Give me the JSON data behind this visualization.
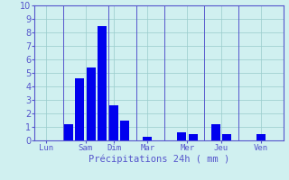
{
  "bars": [
    {
      "x": 1.0,
      "height": 0.0
    },
    {
      "x": 2.0,
      "height": 1.2
    },
    {
      "x": 2.5,
      "height": 4.6
    },
    {
      "x": 3.0,
      "height": 5.4
    },
    {
      "x": 3.5,
      "height": 8.5
    },
    {
      "x": 4.0,
      "height": 2.6
    },
    {
      "x": 4.5,
      "height": 1.5
    },
    {
      "x": 5.5,
      "height": 0.3
    },
    {
      "x": 7.0,
      "height": 0.6
    },
    {
      "x": 7.5,
      "height": 0.5
    },
    {
      "x": 8.5,
      "height": 1.2
    },
    {
      "x": 9.0,
      "height": 0.5
    },
    {
      "x": 10.5,
      "height": 0.5
    }
  ],
  "bar_color": "#0000ee",
  "bar_width": 0.4,
  "background_color": "#d0f0f0",
  "grid_color": "#99cccc",
  "axis_color": "#5555cc",
  "tick_color": "#5555cc",
  "xlabel": "Précipitations 24h ( mm )",
  "ylim": [
    0,
    10
  ],
  "yticks": [
    0,
    1,
    2,
    3,
    4,
    5,
    6,
    7,
    8,
    9,
    10
  ],
  "day_tick_positions": [
    1.0,
    2.75,
    4.0,
    5.5,
    7.25,
    8.75,
    10.5
  ],
  "day_labels": [
    "Lun",
    "Sam",
    "Dim",
    "Mar",
    "Mer",
    "Jeu",
    "Ven"
  ],
  "separator_positions": [
    1.75,
    3.75,
    5.0,
    6.25,
    8.0,
    9.5
  ],
  "xlim": [
    0.5,
    11.5
  ]
}
